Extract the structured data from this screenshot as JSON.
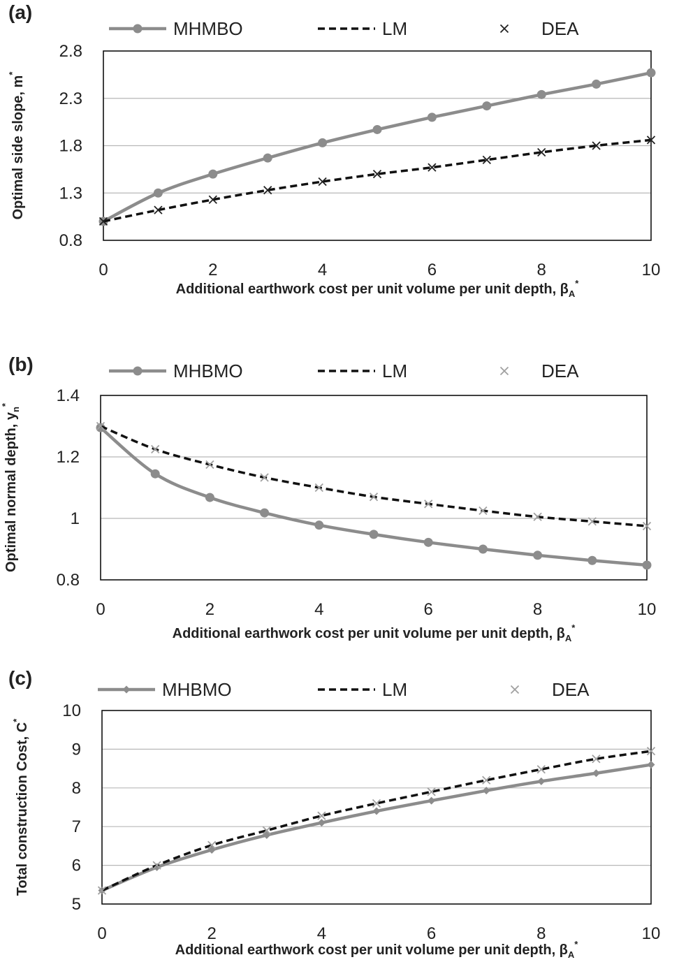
{
  "chart_data": [
    {
      "type": "line",
      "panel_label": "(a)",
      "x": [
        0,
        1,
        2,
        3,
        4,
        5,
        6,
        7,
        8,
        9,
        10
      ],
      "xlim": [
        0,
        10
      ],
      "xticks": [
        "0",
        "2",
        "4",
        "6",
        "8",
        "10"
      ],
      "ylim": [
        0.8,
        2.8
      ],
      "yticks": [
        "0.8",
        "1.3",
        "1.8",
        "2.3",
        "2.8"
      ],
      "xlabel": {
        "main": "Additional earthwork cost per unit volume per unit depth, β",
        "sub": "A",
        "sup": "*"
      },
      "ylabel": {
        "main": "Optimal side slope, m",
        "sub": "",
        "sup": "*"
      },
      "grid": true,
      "legend_position": "top",
      "series": [
        {
          "name": "MHMBO",
          "style": "solid-circle",
          "color": "#8c8c8c",
          "values": [
            1.0,
            1.3,
            1.5,
            1.67,
            1.83,
            1.97,
            2.1,
            2.22,
            2.34,
            2.45,
            2.57
          ]
        },
        {
          "name": "LM",
          "style": "dashed",
          "color": "#111111",
          "values": [
            1.0,
            1.12,
            1.23,
            1.33,
            1.42,
            1.5,
            1.57,
            1.65,
            1.73,
            1.8,
            1.86
          ]
        },
        {
          "name": "DEA",
          "style": "x-marker",
          "color": "#222222",
          "values": [
            1.0,
            1.12,
            1.23,
            1.33,
            1.42,
            1.5,
            1.57,
            1.65,
            1.73,
            1.8,
            1.86
          ]
        }
      ]
    },
    {
      "type": "line",
      "panel_label": "(b)",
      "x": [
        0,
        1,
        2,
        3,
        4,
        5,
        6,
        7,
        8,
        9,
        10
      ],
      "xlim": [
        0,
        10
      ],
      "xticks": [
        "0",
        "2",
        "4",
        "6",
        "8",
        "10"
      ],
      "ylim": [
        0.8,
        1.4
      ],
      "yticks": [
        "0.8",
        "1",
        "1.2",
        "1.4"
      ],
      "xlabel": {
        "main": "Additional earthwork cost per unit volume per unit depth, β",
        "sub": "A",
        "sup": "*"
      },
      "ylabel": {
        "main": "Optimal normal depth, y",
        "sub": "n",
        "sup": "*"
      },
      "grid": true,
      "legend_position": "top",
      "series": [
        {
          "name": "MHBMO",
          "style": "solid-circle",
          "color": "#8c8c8c",
          "values": [
            1.295,
            1.145,
            1.068,
            1.018,
            0.978,
            0.948,
            0.922,
            0.9,
            0.88,
            0.863,
            0.848
          ]
        },
        {
          "name": "LM",
          "style": "dashed",
          "color": "#111111",
          "values": [
            1.3,
            1.225,
            1.175,
            1.133,
            1.1,
            1.07,
            1.047,
            1.025,
            1.005,
            0.99,
            0.975
          ]
        },
        {
          "name": "DEA",
          "style": "x-marker",
          "color": "#a0a0a0",
          "values": [
            1.3,
            1.225,
            1.175,
            1.133,
            1.1,
            1.07,
            1.047,
            1.025,
            1.005,
            0.99,
            0.975
          ]
        }
      ]
    },
    {
      "type": "line",
      "panel_label": "(c)",
      "x": [
        0,
        1,
        2,
        3,
        4,
        5,
        6,
        7,
        8,
        9,
        10
      ],
      "xlim": [
        0,
        10
      ],
      "xticks": [
        "0",
        "2",
        "4",
        "6",
        "8",
        "10"
      ],
      "ylim": [
        5,
        10
      ],
      "yticks": [
        "5",
        "6",
        "7",
        "8",
        "9",
        "10"
      ],
      "xlabel": {
        "main": "Additional earthwork cost per unit volume per unit depth, β",
        "sub": "A",
        "sup": "*"
      },
      "ylabel": {
        "main": "Total construction Cost, C",
        "sub": "",
        "sup": "*"
      },
      "grid": true,
      "legend_position": "top",
      "series": [
        {
          "name": "MHBMO",
          "style": "solid-diamond",
          "color": "#8c8c8c",
          "values": [
            5.35,
            5.95,
            6.4,
            6.78,
            7.1,
            7.4,
            7.67,
            7.93,
            8.17,
            8.38,
            8.6
          ]
        },
        {
          "name": "LM",
          "style": "dashed",
          "color": "#111111",
          "values": [
            5.35,
            6.0,
            6.52,
            6.9,
            7.28,
            7.6,
            7.9,
            8.2,
            8.48,
            8.75,
            8.95
          ]
        },
        {
          "name": "DEA",
          "style": "x-marker",
          "color": "#a0a0a0",
          "values": [
            5.35,
            6.0,
            6.52,
            6.9,
            7.28,
            7.6,
            7.9,
            8.2,
            8.48,
            8.75,
            8.95
          ]
        }
      ]
    }
  ]
}
